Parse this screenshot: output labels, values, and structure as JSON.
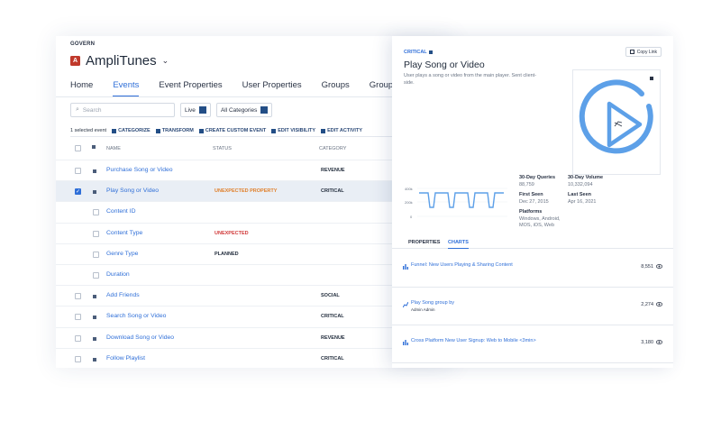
{
  "app": {
    "org": "GOVERN",
    "logo_letter": "A",
    "name": "AmpliTunes"
  },
  "tabs": [
    "Home",
    "Events",
    "Event Properties",
    "User Properties",
    "Groups",
    "Group Prope"
  ],
  "active_tab": "Events",
  "search": {
    "placeholder": "Search"
  },
  "filters": {
    "live": "Live",
    "categories": "All Categories"
  },
  "actions": {
    "selected": "1 selected event",
    "items": [
      "CATEGORIZE",
      "TRANSFORM",
      "CREATE CUSTOM EVENT",
      "EDIT VISIBILITY",
      "EDIT ACTIVITY"
    ]
  },
  "table": {
    "headers": {
      "name": "NAME",
      "status": "STATUS",
      "category": "CATEGORY"
    },
    "rows": [
      {
        "name": "Purchase Song or Video",
        "status": "",
        "category": "REVENUE",
        "indent": false,
        "selected": false
      },
      {
        "name": "Play Song or Video",
        "status": "UNEXPECTED PROPERTY",
        "category": "CRITICAL",
        "indent": false,
        "selected": true
      },
      {
        "name": "Content ID",
        "status": "",
        "category": "",
        "indent": true,
        "selected": false
      },
      {
        "name": "Content Type",
        "status": "UNEXPECTED",
        "category": "",
        "indent": true,
        "selected": false
      },
      {
        "name": "Genre Type",
        "status": "PLANNED",
        "category": "",
        "indent": true,
        "selected": false
      },
      {
        "name": "Duration",
        "status": "",
        "category": "",
        "indent": true,
        "selected": false
      },
      {
        "name": "Add Friends",
        "status": "",
        "category": "SOCIAL",
        "indent": false,
        "selected": false
      },
      {
        "name": "Search Song or Video",
        "status": "",
        "category": "CRITICAL",
        "indent": false,
        "selected": false
      },
      {
        "name": "Download Song or Video",
        "status": "",
        "category": "REVENUE",
        "indent": false,
        "selected": false
      },
      {
        "name": "Follow Playlist",
        "status": "",
        "category": "CRITICAL",
        "indent": false,
        "selected": false
      }
    ]
  },
  "detail": {
    "tag": "CRITICAL",
    "copy_link": "Copy Link",
    "title": "Play Song or Video",
    "description": "User plays a song or video from the main player. Sent client-side.",
    "stats": [
      {
        "label": "30-Day Queries",
        "value": "88,759"
      },
      {
        "label": "30-Day Volume",
        "value": "10,332,094"
      },
      {
        "label": "First Seen",
        "value": "Dec 27, 2015"
      },
      {
        "label": "Last Seen",
        "value": "Apr 16, 2021"
      },
      {
        "label": "Platforms",
        "value": "Windows, Android, MOS, iOS, Web"
      }
    ],
    "spark_axis": [
      "400k",
      "200k",
      "0"
    ],
    "tabs": [
      "PROPERTIES",
      "CHARTS"
    ],
    "active_tab": "CHARTS",
    "charts": [
      {
        "title": "Funnel: New Users Playing & Sharing Content",
        "subtitle": "",
        "views": "8,551",
        "icon": "bar-chart-icon"
      },
      {
        "title": "Play Song group by",
        "subtitle": "Admin Admin",
        "views": "2,274",
        "icon": "line-chart-icon"
      },
      {
        "title": "Cross Platform New User Signup: Web to Mobile <3min>",
        "subtitle": "",
        "views": "3,180",
        "icon": "bar-chart-icon"
      }
    ]
  },
  "colors": {
    "accent": "#2f6fd8",
    "brand": "#c0392b",
    "unexpected_property": "#e0802c",
    "unexpected": "#d13b3b",
    "art_blue": "#5da0e8"
  }
}
